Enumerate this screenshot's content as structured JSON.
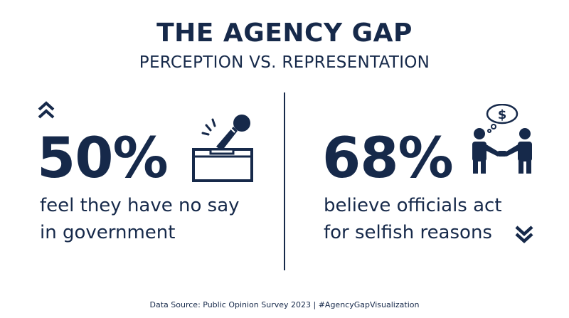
{
  "header": {
    "title": "THE AGENCY GAP",
    "subtitle": "PERCEPTION VS. REPRESENTATION"
  },
  "left_panel": {
    "stat": "50%",
    "line1": "feel they have no say",
    "line2": "in government",
    "trend_icon": "chevron-up-icon",
    "illustration_icon": "ballot-box-microphone-icon"
  },
  "right_panel": {
    "stat": "68%",
    "line1": "believe officials act",
    "line2": "for selfish reasons",
    "trend_icon": "chevron-down-icon",
    "illustration_icon": "handshake-money-thought-icon",
    "bubble_symbol": "$"
  },
  "footer": {
    "source": "Data Source: Public Opinion Survey 2023 | #AgencyGapVisualization"
  },
  "colors": {
    "primary": "#16294a",
    "background": "#ffffff"
  }
}
